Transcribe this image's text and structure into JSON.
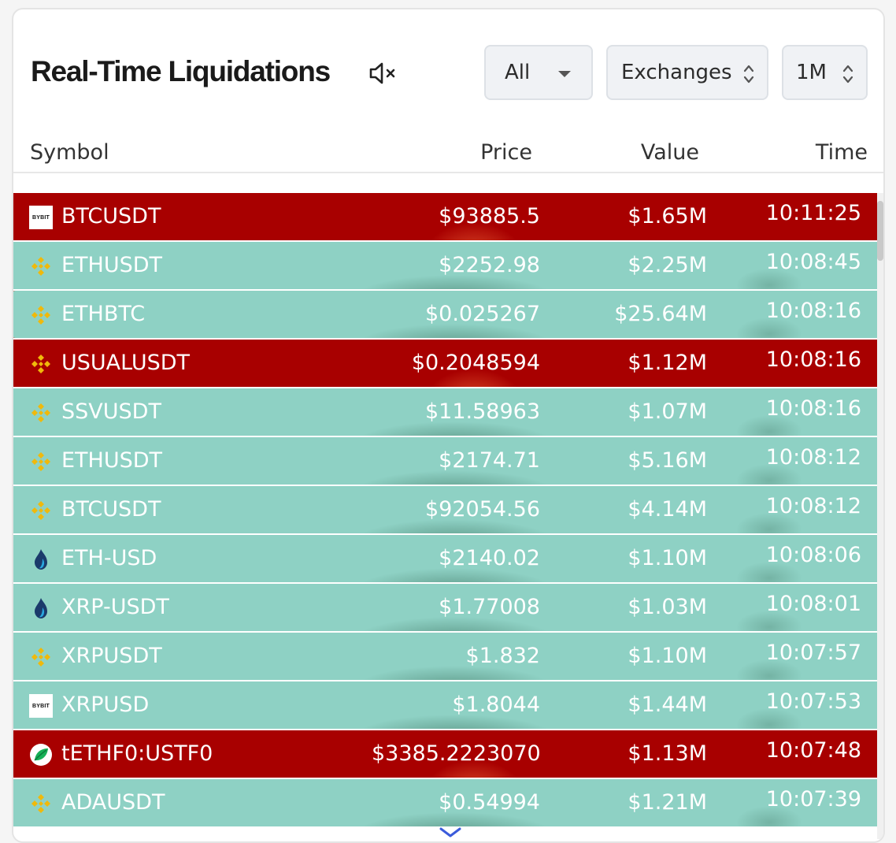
{
  "header": {
    "title": "Real-Time Liquidations",
    "filter_all": "All",
    "exchanges": "Exchanges",
    "timeframe": "1M"
  },
  "columns": {
    "symbol": "Symbol",
    "price": "Price",
    "value": "Value",
    "time": "Time"
  },
  "colors": {
    "long": "#8ed1c4",
    "short": "#a80000",
    "highlight": "#e83a1d",
    "binance": "#f0b90b"
  },
  "rows": [
    {
      "exchange": "bybit",
      "logo_text": "BYBIT",
      "symbol": "BTCUSDT",
      "price": "$93885.5",
      "value": "$1.65M",
      "time": "10:11:25",
      "side": "short"
    },
    {
      "exchange": "binance",
      "symbol": "ETHUSDT",
      "price": "$2252.98",
      "value": "$2.25M",
      "time": "10:08:45",
      "side": "long"
    },
    {
      "exchange": "binance",
      "symbol": "ETHBTC",
      "price": "$0.025267",
      "value": "$25.64M",
      "time": "10:08:16",
      "side": "long",
      "highlighted": true
    },
    {
      "exchange": "binance",
      "symbol": "USUALUSDT",
      "price": "$0.2048594",
      "value": "$1.12M",
      "time": "10:08:16",
      "side": "short"
    },
    {
      "exchange": "binance",
      "symbol": "SSVUSDT",
      "price": "$11.58963",
      "value": "$1.07M",
      "time": "10:08:16",
      "side": "long"
    },
    {
      "exchange": "binance",
      "symbol": "ETHUSDT",
      "price": "$2174.71",
      "value": "$5.16M",
      "time": "10:08:12",
      "side": "long"
    },
    {
      "exchange": "binance",
      "symbol": "BTCUSDT",
      "price": "$92054.56",
      "value": "$4.14M",
      "time": "10:08:12",
      "side": "long"
    },
    {
      "exchange": "huobi",
      "symbol": "ETH-USD",
      "price": "$2140.02",
      "value": "$1.10M",
      "time": "10:08:06",
      "side": "long"
    },
    {
      "exchange": "huobi",
      "symbol": "XRP-USDT",
      "price": "$1.77008",
      "value": "$1.03M",
      "time": "10:08:01",
      "side": "long"
    },
    {
      "exchange": "binance",
      "symbol": "XRPUSDT",
      "price": "$1.832",
      "value": "$1.10M",
      "time": "10:07:57",
      "side": "long"
    },
    {
      "exchange": "bybit",
      "logo_text": "BYBIT",
      "symbol": "XRPUSD",
      "price": "$1.8044",
      "value": "$1.44M",
      "time": "10:07:53",
      "side": "long"
    },
    {
      "exchange": "bitfinex",
      "symbol": "tETHF0:USTF0",
      "price": "$3385.22230703",
      "value": "$1.13M",
      "time": "10:07:48",
      "side": "short"
    },
    {
      "exchange": "binance",
      "symbol": "ADAUSDT",
      "price": "$0.54994",
      "value": "$1.21M",
      "time": "10:07:39",
      "side": "long"
    }
  ],
  "icons": {
    "mute": "speaker-muted-icon",
    "dropdown": "caret-down-icon",
    "sort": "up-down-chevron-icon",
    "more": "chevron-down-icon"
  }
}
